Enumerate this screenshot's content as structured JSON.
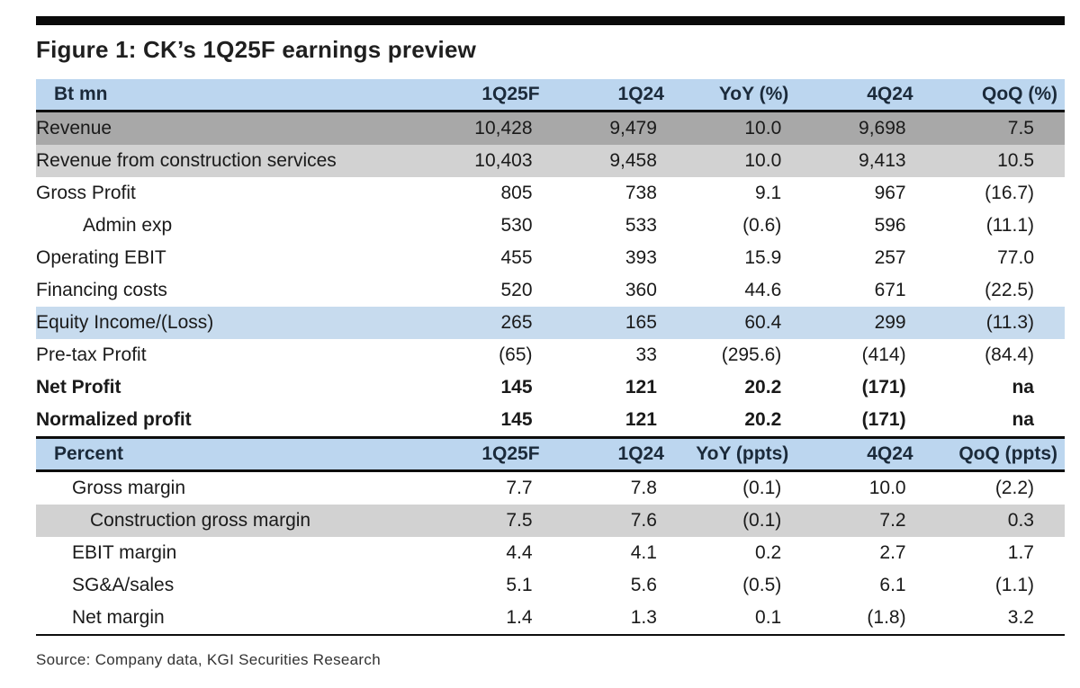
{
  "title": "Figure 1: CK’s 1Q25F earnings preview",
  "source": "Source: Company data, KGI Securities Research",
  "section1": {
    "header": [
      "Bt mn",
      "1Q25F",
      "1Q24",
      "YoY (%)",
      "4Q24",
      "QoQ (%)"
    ],
    "rows": [
      {
        "label": "Revenue",
        "values": [
          "10,428",
          "9,479",
          "10.0",
          "9,698",
          "7.5"
        ]
      },
      {
        "label": "Revenue from construction services",
        "values": [
          "10,403",
          "9,458",
          "10.0",
          "9,413",
          "10.5"
        ]
      },
      {
        "label": "Gross Profit",
        "values": [
          "805",
          "738",
          "9.1",
          "967",
          "(16.7)"
        ]
      },
      {
        "label": "Admin exp",
        "values": [
          "530",
          "533",
          "(0.6)",
          "596",
          "(11.1)"
        ]
      },
      {
        "label": "Operating EBIT",
        "values": [
          "455",
          "393",
          "15.9",
          "257",
          "77.0"
        ]
      },
      {
        "label": "Financing costs",
        "values": [
          "520",
          "360",
          "44.6",
          "671",
          "(22.5)"
        ]
      },
      {
        "label": "Equity Income/(Loss)",
        "values": [
          "265",
          "165",
          "60.4",
          "299",
          "(11.3)"
        ]
      },
      {
        "label": "Pre-tax Profit",
        "values": [
          "(65)",
          "33",
          "(295.6)",
          "(414)",
          "(84.4)"
        ]
      },
      {
        "label": "Net Profit",
        "values": [
          "145",
          "121",
          "20.2",
          "(171)",
          "na"
        ]
      },
      {
        "label": "Normalized profit",
        "values": [
          "145",
          "121",
          "20.2",
          "(171)",
          "na"
        ]
      }
    ]
  },
  "section2": {
    "header": [
      "Percent",
      "1Q25F",
      "1Q24",
      "YoY (ppts)",
      "4Q24",
      "QoQ (ppts)"
    ],
    "rows": [
      {
        "label": "Gross margin",
        "values": [
          "7.7",
          "7.8",
          "(0.1)",
          "10.0",
          "(2.2)"
        ]
      },
      {
        "label": "Construction gross margin",
        "values": [
          "7.5",
          "7.6",
          "(0.1)",
          "7.2",
          "0.3"
        ]
      },
      {
        "label": "EBIT margin",
        "values": [
          "4.4",
          "4.1",
          "0.2",
          "2.7",
          "1.7"
        ]
      },
      {
        "label": "SG&A/sales",
        "values": [
          "5.1",
          "5.6",
          "(0.5)",
          "6.1",
          "(1.1)"
        ]
      },
      {
        "label": "Net margin",
        "values": [
          "1.4",
          "1.3",
          "0.1",
          "(1.8)",
          "3.2"
        ]
      }
    ]
  },
  "colors": {
    "header_bg": "#bcd6ef",
    "shade_dark": "#a8a8a8",
    "shade_light": "#d2d2d2",
    "shade_blue": "#c7dbee",
    "rule": "#0b0b0b"
  }
}
